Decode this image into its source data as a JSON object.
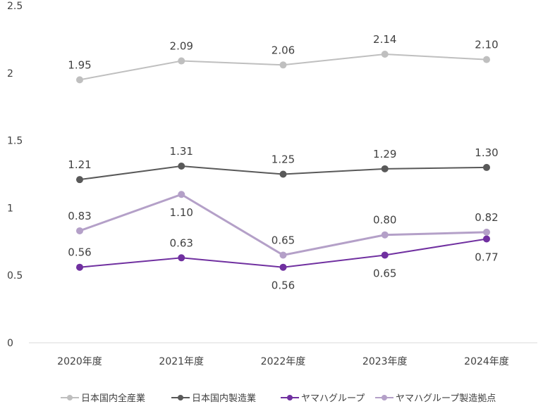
{
  "chart_data": {
    "type": "line",
    "title": "",
    "xlabel": "",
    "ylabel": "",
    "categories": [
      "2020年度",
      "2021年度",
      "2022年度",
      "2023年度",
      "2024年度"
    ],
    "ylim": [
      0,
      2.5
    ],
    "yticks": [
      "0",
      "0.5",
      "1",
      "1.5",
      "2",
      "2.5"
    ],
    "grid": false,
    "legend_position": "bottom",
    "series": [
      {
        "name": "日本国内全産業",
        "color": "#bfbfbf",
        "values": [
          1.95,
          2.09,
          2.06,
          2.14,
          2.1
        ],
        "labels": [
          "1.95",
          "2.09",
          "2.06",
          "2.14",
          "2.10"
        ]
      },
      {
        "name": "日本国内製造業",
        "color": "#595959",
        "values": [
          1.21,
          1.31,
          1.25,
          1.29,
          1.3
        ],
        "labels": [
          "1.21",
          "1.31",
          "1.25",
          "1.29",
          "1.30"
        ]
      },
      {
        "name": "ヤマハグループ",
        "color": "#7030a0",
        "values": [
          0.56,
          0.63,
          0.56,
          0.65,
          0.77
        ],
        "labels": [
          "0.56",
          "0.63",
          "0.56",
          "0.65",
          "0.77"
        ]
      },
      {
        "name": "ヤマハグループ製造拠点",
        "color": "#b4a0c8",
        "values": [
          0.83,
          1.1,
          0.65,
          0.8,
          0.82
        ],
        "labels": [
          "0.83",
          "1.10",
          "0.65",
          "0.80",
          "0.82"
        ]
      }
    ]
  }
}
